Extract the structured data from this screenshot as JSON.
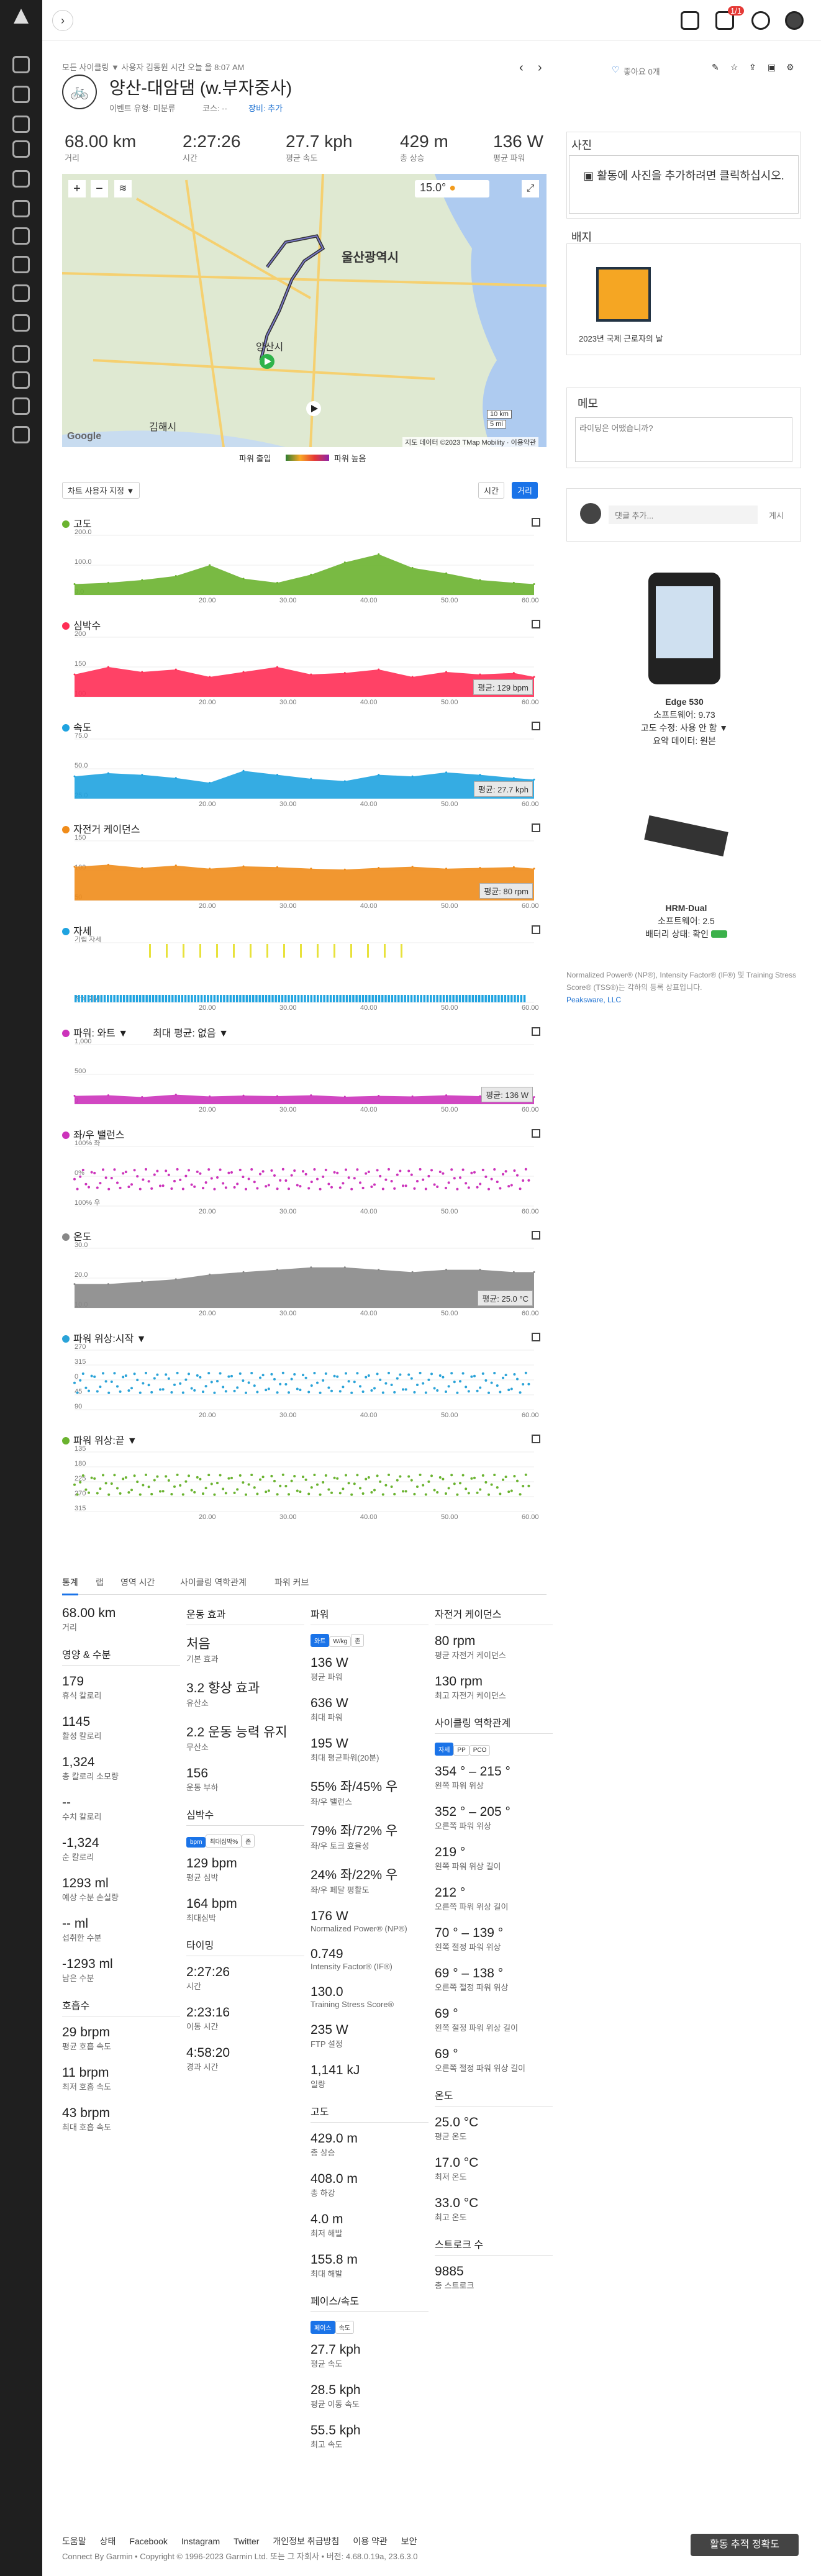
{
  "topbar": {
    "sat": "1/1"
  },
  "breadcrumb": "모든 사이클링 ▼  사용자 김동원 시간 오늘 을 8:07 AM",
  "activity": {
    "title": "양산-대암댐 (w.부자중사)",
    "event_type": "이벤트 유형: 미분류",
    "route": "코스: --",
    "gear": "장비: 추가",
    "likes": "좋아요 0개"
  },
  "stats": [
    {
      "value": "68.00 km",
      "label": "거리"
    },
    {
      "value": "2:27:26",
      "label": "시간"
    },
    {
      "value": "27.7 kph",
      "label": "평균 속도"
    },
    {
      "value": "429 m",
      "label": "총 상승"
    },
    {
      "value": "136 W",
      "label": "평균 파워"
    }
  ],
  "map": {
    "temp": "15.0°",
    "places": [
      "울산광역시",
      "양산시",
      "김해시"
    ],
    "scale1": "10 km",
    "scale2": "5 mi",
    "attribution": "지도 데이터 ©2023 TMap Mobility · 이용약관",
    "google": "Google",
    "power_legend_left": "파워 출입",
    "power_legend_right": "파워 높음"
  },
  "chart_controls": {
    "customize": "차트 사용자 지정 ▼",
    "time": "시간",
    "distance": "거리"
  },
  "chart_data": [
    {
      "type": "area",
      "title": "고도",
      "color": "#6ab32f",
      "yticks": [
        "200.0",
        "100.0",
        "0.0"
      ],
      "xticks": [
        "20.00",
        "30.00",
        "40.00",
        "50.00",
        "60.00"
      ],
      "x": [
        0,
        5,
        10,
        15,
        20,
        25,
        30,
        35,
        40,
        45,
        50,
        55,
        60,
        65,
        68
      ],
      "values": [
        40,
        45,
        55,
        70,
        110,
        60,
        45,
        75,
        120,
        150,
        100,
        80,
        55,
        45,
        40
      ],
      "ylim": [
        0,
        220
      ]
    },
    {
      "type": "area",
      "title": "심박수",
      "color": "#ff2e55",
      "yticks": [
        "200",
        "150",
        "100"
      ],
      "xticks": [
        "20.00",
        "30.00",
        "40.00",
        "50.00",
        "60.00"
      ],
      "x": [
        0,
        5,
        10,
        15,
        20,
        25,
        30,
        35,
        40,
        45,
        50,
        55,
        60,
        65,
        68
      ],
      "values": [
        125,
        140,
        130,
        135,
        120,
        130,
        140,
        125,
        128,
        135,
        120,
        130,
        125,
        128,
        120
      ],
      "ylim": [
        80,
        200
      ],
      "avg_label": "평균: 129 bpm"
    },
    {
      "type": "area",
      "title": "속도",
      "color": "#1fa3e0",
      "yticks": [
        "75.0",
        "50.0",
        "25.0"
      ],
      "xticks": [
        "20.00",
        "30.00",
        "40.00",
        "50.00",
        "60.00"
      ],
      "x": [
        0,
        5,
        10,
        15,
        20,
        25,
        30,
        35,
        40,
        45,
        50,
        55,
        60,
        65,
        68
      ],
      "values": [
        28,
        32,
        30,
        26,
        20,
        35,
        30,
        25,
        22,
        30,
        28,
        33,
        30,
        26,
        24
      ],
      "ylim": [
        0,
        75
      ],
      "avg_label": "평균: 27.7 kph"
    },
    {
      "type": "area",
      "title": "자전거 케이던스",
      "color": "#f08c1a",
      "yticks": [
        "150",
        "100",
        "50"
      ],
      "xticks": [
        "20.00",
        "30.00",
        "40.00",
        "50.00",
        "60.00"
      ],
      "x": [
        0,
        5,
        10,
        15,
        20,
        25,
        30,
        35,
        40,
        45,
        50,
        55,
        60,
        65,
        68
      ],
      "values": [
        85,
        90,
        82,
        88,
        80,
        86,
        84,
        80,
        78,
        82,
        85,
        80,
        82,
        84,
        80
      ],
      "ylim": [
        0,
        150
      ],
      "avg_label": "평균: 80 rpm"
    },
    {
      "type": "bar",
      "title": "자세",
      "color": "#1fa3e0",
      "yticks": [
        "기립 자세",
        "착석 자세"
      ],
      "xticks": [
        "20.00",
        "30.00",
        "40.00",
        "50.00",
        "60.00"
      ]
    },
    {
      "type": "area",
      "title": "파워: 와트 ▼",
      "extra": "최대 평균: 없음 ▼",
      "color": "#cc33bb",
      "yticks": [
        "1,000",
        "500",
        "0"
      ],
      "xticks": [
        "20.00",
        "30.00",
        "40.00",
        "50.00",
        "60.00"
      ],
      "x": [
        0,
        5,
        10,
        15,
        20,
        25,
        30,
        35,
        40,
        45,
        50,
        55,
        60,
        65,
        68
      ],
      "values": [
        140,
        150,
        120,
        160,
        130,
        145,
        135,
        150,
        125,
        140,
        130,
        150,
        135,
        140,
        120
      ],
      "ylim": [
        0,
        1000
      ],
      "avg_label": "평균: 136 W"
    },
    {
      "type": "scatter",
      "title": "좌/우 밸런스",
      "color": "#cc33bb",
      "yticks": [
        "100% 좌",
        "0%",
        "100% 우"
      ],
      "xticks": [
        "20.00",
        "30.00",
        "40.00",
        "50.00",
        "60.00"
      ]
    },
    {
      "type": "area",
      "title": "온도",
      "color": "#888888",
      "yticks": [
        "30.0",
        "20.0",
        "10.0"
      ],
      "xticks": [
        "20.00",
        "30.00",
        "40.00",
        "50.00",
        "60.00"
      ],
      "x": [
        0,
        5,
        10,
        15,
        20,
        25,
        30,
        35,
        40,
        45,
        50,
        55,
        60,
        65,
        68
      ],
      "values": [
        20,
        20,
        21,
        22,
        24,
        25,
        26,
        27,
        27,
        26,
        25,
        26,
        26,
        25,
        25
      ],
      "ylim": [
        10,
        35
      ],
      "avg_label": "평균: 25.0 °C"
    },
    {
      "type": "scatter",
      "title": "파워 위상:시작 ▼",
      "color": "#2aa3d8",
      "yticks": [
        "270",
        "315",
        "0",
        "45",
        "90"
      ],
      "xticks": [
        "20.00",
        "30.00",
        "40.00",
        "50.00",
        "60.00"
      ]
    },
    {
      "type": "scatter",
      "title": "파워 위상:끝 ▼",
      "color": "#6ab32f",
      "yticks": [
        "135",
        "180",
        "225",
        "270",
        "315"
      ],
      "xticks": [
        "20.00",
        "30.00",
        "40.00",
        "50.00",
        "60.00"
      ]
    }
  ],
  "right": {
    "photos_title": "사진",
    "photos_text": "활동에 사진을 추가하려면 클릭하십시오.",
    "badges_title": "배지",
    "badge_label": "2023년 국제 근로자의 날",
    "memo_title": "메모",
    "memo_placeholder": "라이딩은 어땠습니까?",
    "comment_placeholder": "댓글 추가...",
    "comment_post": "게시",
    "device": {
      "name": "Edge 530",
      "software": "소프트웨어: 9.73",
      "altitude": "고도 수정:  사용 안 함 ▼",
      "summary": "요약 데이터: 원본"
    },
    "hrm": {
      "name": "HRM-Dual",
      "software": "소프트웨어: 2.5",
      "battery": "배터리 상태: 확인"
    },
    "notice": "Normalized Power® (NP®), Intensity Factor® (IF®) 및 Training Stress Score® (TSS®)는 각하의 등록 상표입니다.",
    "notice_link": "Peaksware, LLC"
  },
  "tabs": [
    "통계",
    "랩",
    "영역 시간",
    "사이클링 역학관계",
    "파워 커브"
  ],
  "summary": {
    "c1": [
      {
        "v": "68.00 km",
        "l": "거리"
      },
      {
        "h": "영양 & 수분"
      },
      {
        "v": "179",
        "l": "휴식 칼로리"
      },
      {
        "v": "1145",
        "l": "활성 칼로리"
      },
      {
        "v": "1,324",
        "l": "총 칼로리 소모량"
      },
      {
        "v": "--",
        "l": "수치 칼로리"
      },
      {
        "v": "-1,324",
        "l": "순 칼로리"
      },
      {
        "v": "1293 ml",
        "l": "예상 수분 손실량"
      },
      {
        "v": "-- ml",
        "l": "섭취한 수분"
      },
      {
        "v": "-1293 ml",
        "l": "남은 수분"
      },
      {
        "h": "호흡수"
      },
      {
        "v": "29 brpm",
        "l": "평균 호흡 속도"
      },
      {
        "v": "11 brpm",
        "l": "최저 호흡 속도"
      },
      {
        "v": "43 brpm",
        "l": "최대 호흡 속도"
      }
    ],
    "c2": [
      {
        "h": "운동 효과"
      },
      {
        "v": "처음",
        "l": "기본 효과"
      },
      {
        "v": "3.2 향상 효과",
        "l": "유산소"
      },
      {
        "v": "2.2 운동 능력 유지",
        "l": "무산소"
      },
      {
        "v": "156",
        "l": "운동 부하"
      },
      {
        "h": "심박수"
      },
      {
        "btns": [
          "bpm",
          "최대심박%",
          "존"
        ]
      },
      {
        "v": "129 bpm",
        "l": "평균 심박"
      },
      {
        "v": "164 bpm",
        "l": "최대심박"
      },
      {
        "h": "타이밍"
      },
      {
        "v": "2:27:26",
        "l": "시간"
      },
      {
        "v": "2:23:16",
        "l": "이동 시간"
      },
      {
        "v": "4:58:20",
        "l": "경과 시간"
      }
    ],
    "c3": [
      {
        "h": "파워"
      },
      {
        "btns": [
          "와트",
          "W/kg",
          "존"
        ]
      },
      {
        "v": "136 W",
        "l": "평균 파워"
      },
      {
        "v": "636 W",
        "l": "최대 파워"
      },
      {
        "v": "195 W",
        "l": "최대 평균파워(20분)"
      },
      {
        "v": "55% 좌/45% 우",
        "l": "좌/우 밸런스"
      },
      {
        "v": "79% 좌/72% 우",
        "l": "좌/우 토크 효율성"
      },
      {
        "v": "24% 좌/22% 우",
        "l": "좌/우 페달 평활도"
      },
      {
        "v": "176 W",
        "l": "Normalized Power® (NP®)"
      },
      {
        "v": "0.749",
        "l": "Intensity Factor® (IF®)"
      },
      {
        "v": "130.0",
        "l": "Training Stress Score®"
      },
      {
        "v": "235 W",
        "l": "FTP 설정"
      },
      {
        "v": "1,141 kJ",
        "l": "일량"
      },
      {
        "h": "고도"
      },
      {
        "v": "429.0 m",
        "l": "총 상승"
      },
      {
        "v": "408.0 m",
        "l": "총 하강"
      },
      {
        "v": "4.0 m",
        "l": "최저 해발"
      },
      {
        "v": "155.8 m",
        "l": "최대 해발"
      },
      {
        "h": "페이스/속도"
      },
      {
        "btns": [
          "페이스",
          "속도"
        ]
      },
      {
        "v": "27.7 kph",
        "l": "평균 속도"
      },
      {
        "v": "28.5 kph",
        "l": "평균 이동 속도"
      },
      {
        "v": "55.5 kph",
        "l": "최고 속도"
      }
    ],
    "c4": [
      {
        "h": "자전거 케이던스"
      },
      {
        "v": "80 rpm",
        "l": "평균 자전거 케이던스"
      },
      {
        "v": "130 rpm",
        "l": "최고 자전거 케이던스"
      },
      {
        "h": "사이클링 역학관계"
      },
      {
        "btns": [
          "자세",
          "PP",
          "PCO"
        ]
      },
      {
        "v": "354 ° – 215 °",
        "l": "왼쪽 파워 위상"
      },
      {
        "v": "352 ° – 205 °",
        "l": "오른쪽 파워 위상"
      },
      {
        "v": "219 °",
        "l": "왼쪽 파워 위상 길이"
      },
      {
        "v": "212 °",
        "l": "오른쪽 파워 위상 길이"
      },
      {
        "v": "70 ° – 139 °",
        "l": "왼쪽 절정 파워 위상"
      },
      {
        "v": "69 ° – 138 °",
        "l": "오른쪽 절정 파워 위상"
      },
      {
        "v": "69 °",
        "l": "왼쪽 절정 파워 위상 길이"
      },
      {
        "v": "69 °",
        "l": "오른쪽 절정 파워 위상 길이"
      },
      {
        "h": "온도"
      },
      {
        "v": "25.0 °C",
        "l": "평균 온도"
      },
      {
        "v": "17.0 °C",
        "l": "최저 온도"
      },
      {
        "v": "33.0 °C",
        "l": "최고 온도"
      },
      {
        "h": "스트로크 수"
      },
      {
        "v": "9885",
        "l": "총 스트로크"
      }
    ]
  },
  "footer": {
    "links": [
      "도움말",
      "상태",
      "Facebook",
      "Instagram",
      "Twitter",
      "개인정보 취급방침",
      "이용 약관",
      "보안"
    ],
    "copyright": "Connect By Garmin • Copyright © 1996-2023 Garmin Ltd. 또는 그 자회사 • 버전: 4.68.0.19a, 23.6.3.0",
    "feedback": "활동 추적 정확도"
  }
}
